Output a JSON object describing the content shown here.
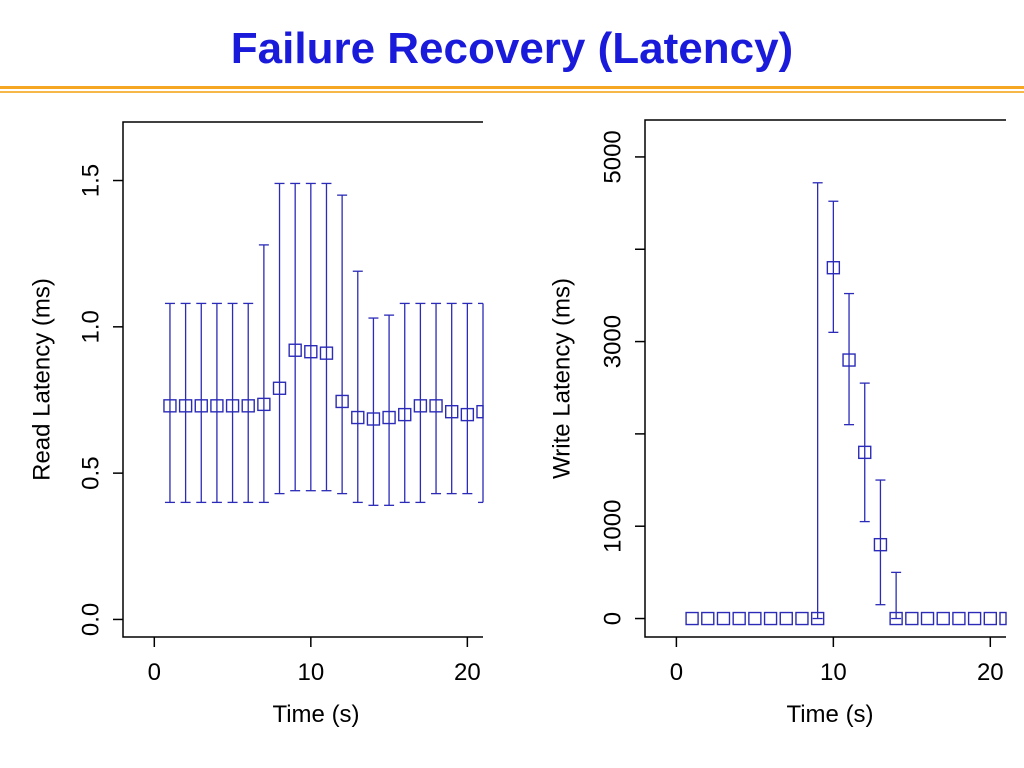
{
  "slide": {
    "title": "Failure Recovery (Latency)"
  },
  "colors": {
    "title": "#1a1adb",
    "series": "#2b2bb8",
    "rule": "#f5a623"
  },
  "chart_data": [
    {
      "type": "scatter",
      "xlabel": "Time (s)",
      "ylabel": "Read Latency (ms)",
      "xlim": [
        -2,
        21
      ],
      "ylim": [
        -0.06,
        1.7
      ],
      "xticks": [
        0,
        10,
        20
      ],
      "yticks": [
        0.0,
        0.5,
        1.0,
        1.5
      ],
      "ytick_labels": [
        "0.0",
        "0.5",
        "1.0",
        "1.5"
      ],
      "xtick_labels": [
        "0",
        "10",
        "20"
      ],
      "series": [
        {
          "x": [
            1,
            2,
            3,
            4,
            5,
            6,
            7,
            8,
            9,
            10,
            11,
            12,
            13,
            14,
            15,
            16,
            17,
            18,
            19,
            20,
            21
          ],
          "y": [
            0.73,
            0.73,
            0.73,
            0.73,
            0.73,
            0.73,
            0.735,
            0.79,
            0.92,
            0.915,
            0.91,
            0.745,
            0.69,
            0.685,
            0.69,
            0.7,
            0.73,
            0.73,
            0.71,
            0.7,
            0.71
          ],
          "err_low": [
            0.4,
            0.4,
            0.4,
            0.4,
            0.4,
            0.4,
            0.4,
            0.43,
            0.44,
            0.44,
            0.44,
            0.43,
            0.4,
            0.39,
            0.39,
            0.4,
            0.4,
            0.43,
            0.43,
            0.43,
            0.4
          ],
          "err_high": [
            1.08,
            1.08,
            1.08,
            1.08,
            1.08,
            1.08,
            1.28,
            1.49,
            1.49,
            1.49,
            1.49,
            1.45,
            1.19,
            1.03,
            1.04,
            1.08,
            1.08,
            1.08,
            1.08,
            1.08,
            1.08
          ]
        }
      ]
    },
    {
      "type": "scatter",
      "xlabel": "Time (s)",
      "ylabel": "Write Latency (ms)",
      "xlim": [
        -2,
        21
      ],
      "ylim": [
        -200,
        5400
      ],
      "xticks": [
        0,
        10,
        20
      ],
      "yticks": [
        0,
        1000,
        2000,
        3000,
        4000,
        5000
      ],
      "ytick_labels": [
        "0",
        "1000",
        "",
        "3000",
        "",
        "5000"
      ],
      "xtick_labels": [
        "0",
        "10",
        "20"
      ],
      "series": [
        {
          "x": [
            1,
            2,
            3,
            4,
            5,
            6,
            7,
            8,
            9,
            10,
            11,
            12,
            13,
            14,
            15,
            16,
            17,
            18,
            19,
            20,
            21
          ],
          "y": [
            0,
            0,
            0,
            0,
            0,
            0,
            0,
            0,
            0,
            3800,
            2800,
            1800,
            800,
            0,
            0,
            0,
            0,
            0,
            0,
            0,
            0
          ],
          "err_low": [
            0,
            0,
            0,
            0,
            0,
            0,
            0,
            0,
            0,
            3100,
            2100,
            1050,
            150,
            0,
            0,
            0,
            0,
            0,
            0,
            0,
            0
          ],
          "err_high": [
            0,
            0,
            0,
            0,
            0,
            0,
            0,
            0,
            4720,
            4520,
            3520,
            2550,
            1500,
            500,
            0,
            0,
            0,
            0,
            0,
            0,
            0
          ]
        }
      ]
    }
  ]
}
